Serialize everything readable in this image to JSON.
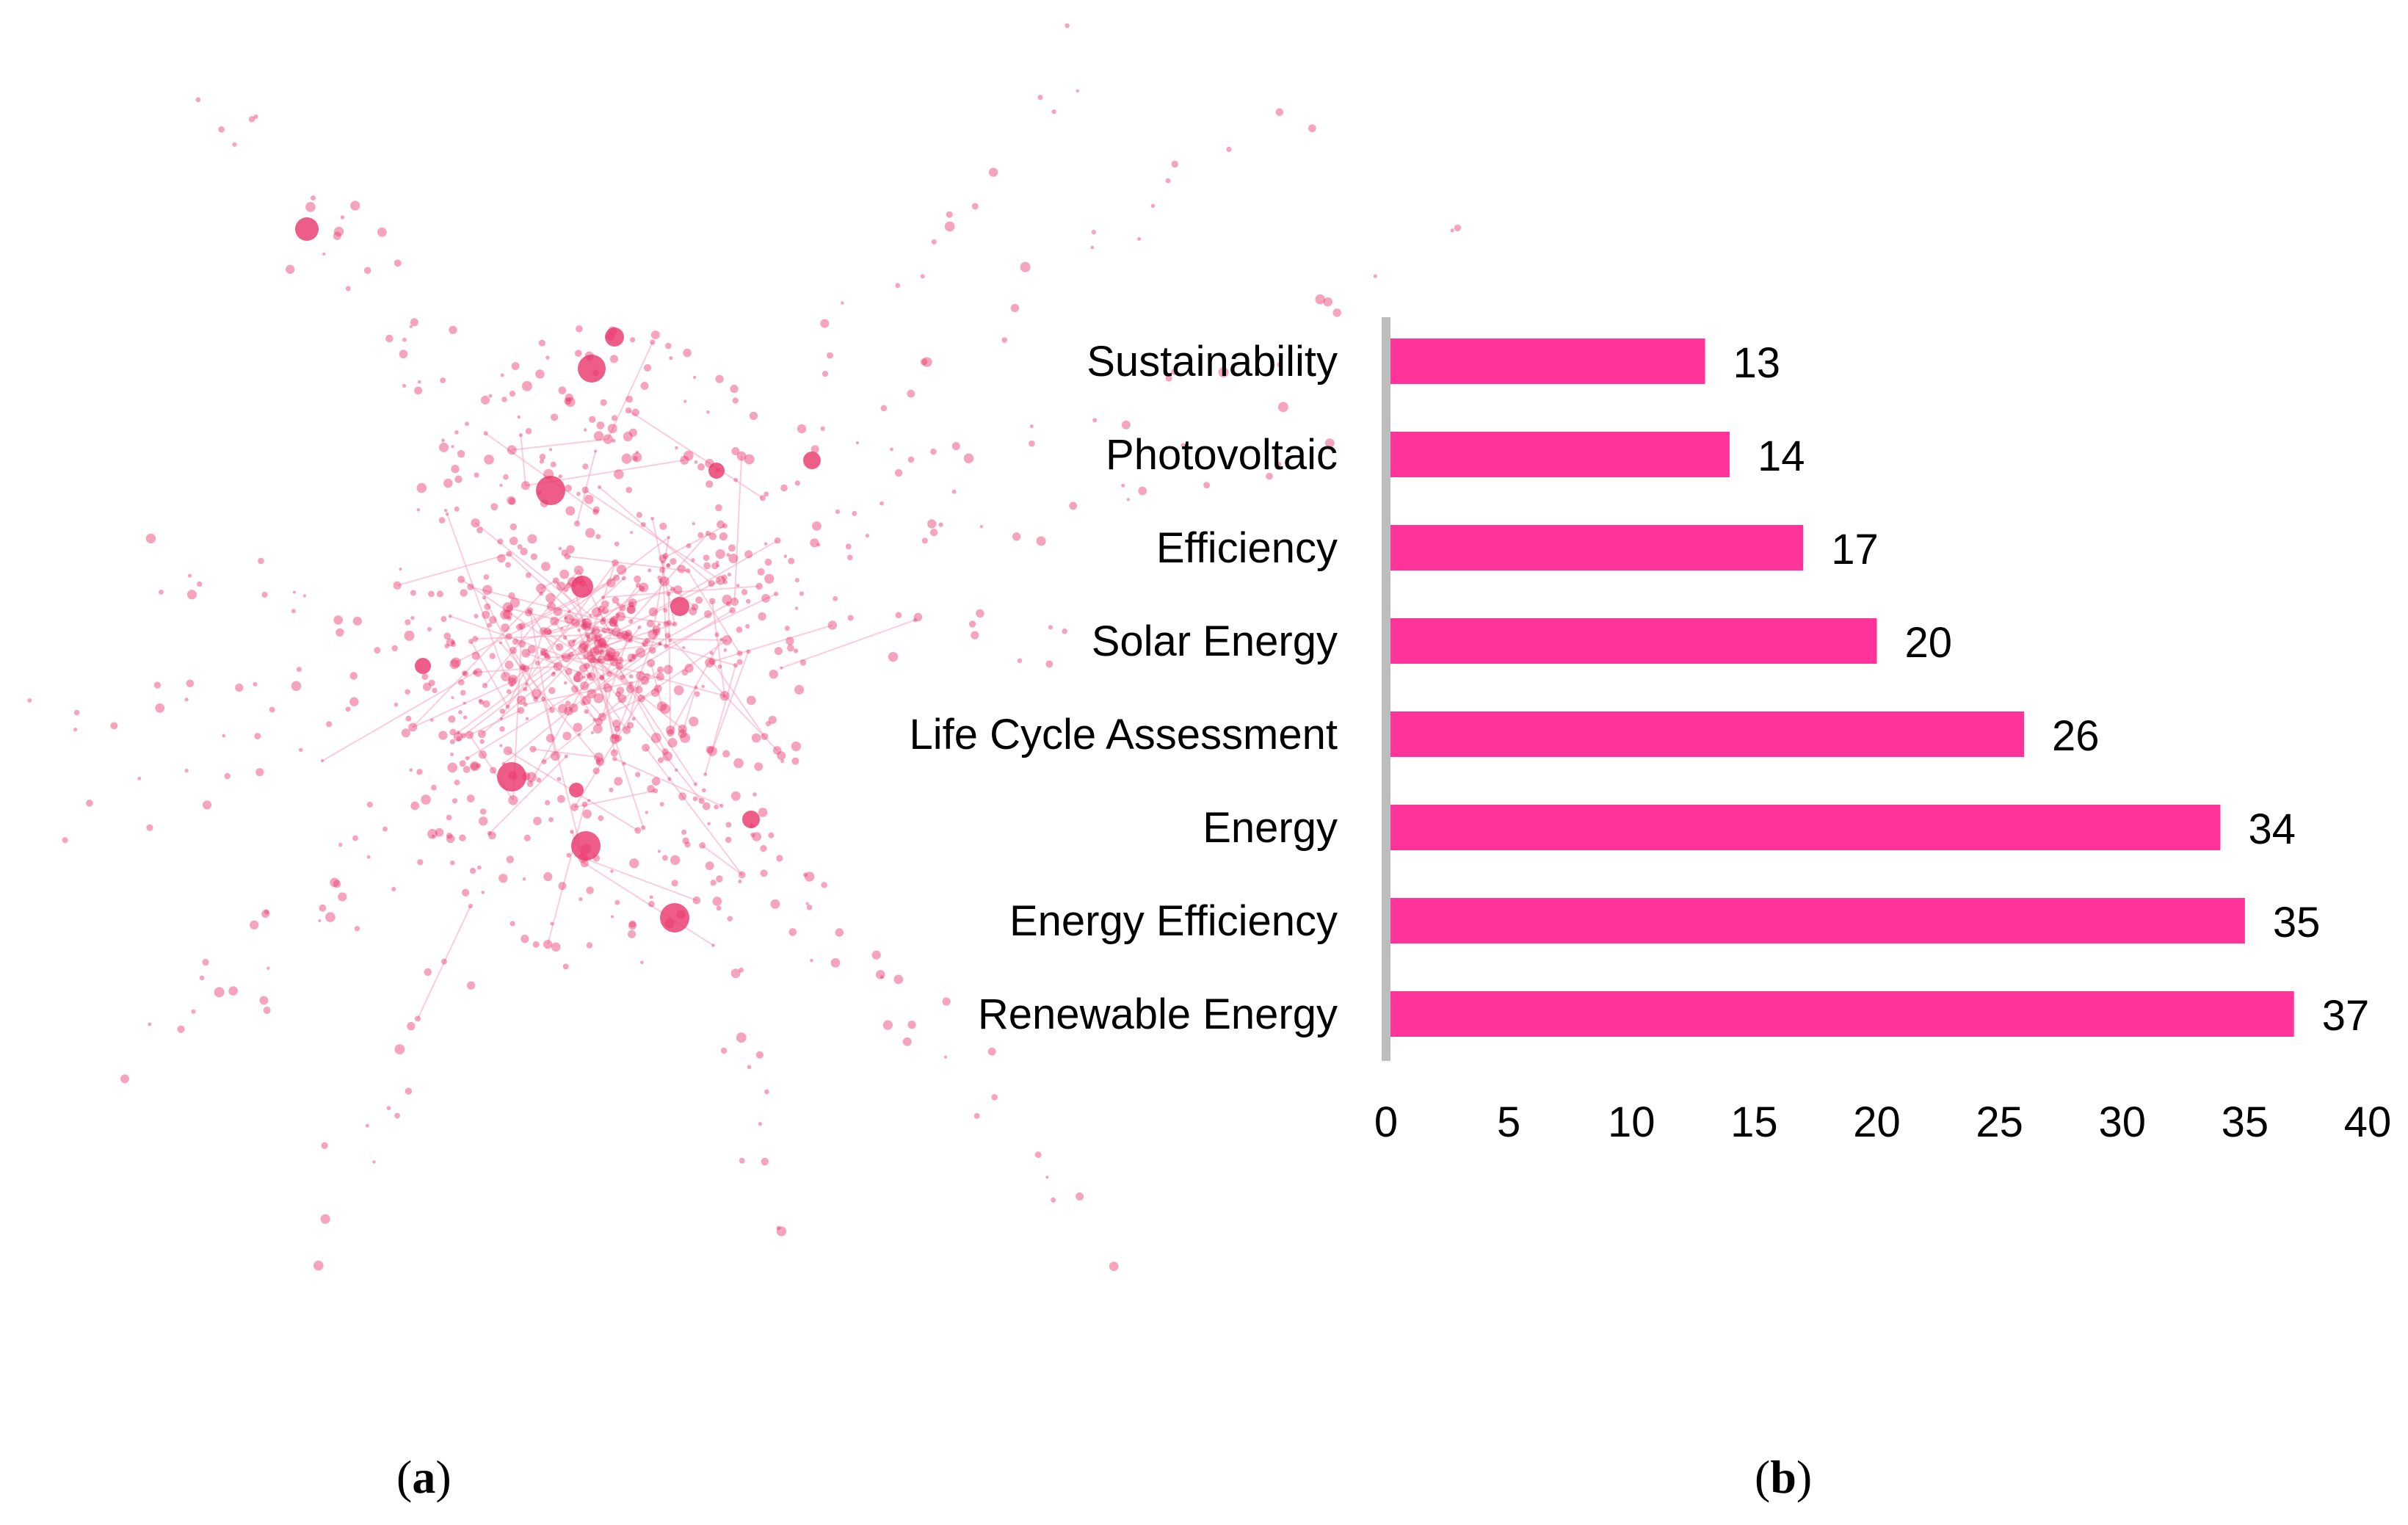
{
  "colors": {
    "bar": "#ff3399",
    "network_node": "#e8356a",
    "network_edge": "#f7a6bf",
    "axis_line": "#bdbdbd",
    "text": "#000000"
  },
  "panels": {
    "a": {
      "label_open": "(",
      "label_letter": "a",
      "label_close": ")"
    },
    "b": {
      "label_open": "(",
      "label_letter": "b",
      "label_close": ")"
    }
  },
  "chart_data": [
    {
      "type": "network",
      "description_free": true
    },
    {
      "type": "bar",
      "orientation": "horizontal",
      "categories": [
        "Sustainability",
        "Photovoltaic",
        "Efficiency",
        "Solar Energy",
        "Life Cycle Assessment",
        "Energy",
        "Energy Efficiency",
        "Renewable Energy"
      ],
      "values": [
        13,
        14,
        17,
        20,
        26,
        34,
        35,
        37
      ],
      "xlim": [
        0,
        40
      ],
      "xticks": [
        0,
        5,
        10,
        15,
        20,
        25,
        30,
        35,
        40
      ],
      "title": "",
      "xlabel": "",
      "ylabel": ""
    }
  ]
}
